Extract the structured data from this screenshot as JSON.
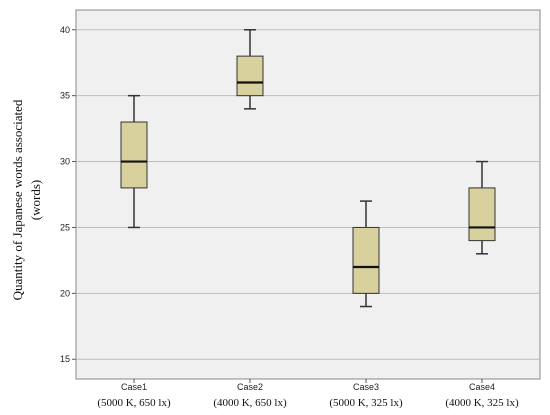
{
  "chart_data": {
    "type": "boxplot",
    "title": "",
    "ylabel_line1": "Quantity of Japanese words associated",
    "ylabel_line2": "(words)",
    "ylim": [
      13.5,
      41.5
    ],
    "yticks": [
      15,
      20,
      25,
      30,
      35,
      40
    ],
    "grid": true,
    "box_color": "#D8D19E",
    "box_edge_color": "#333333",
    "plot_background": "#F0F0F0",
    "categories": [
      "Case1",
      "Case2",
      "Case3",
      "Case4"
    ],
    "conditions": [
      "(5000 K,  650 lx)",
      "(4000 K,  650 lx)",
      "(5000 K,  325 lx)",
      "(4000 K,  325 lx)"
    ],
    "boxes": [
      {
        "category": "Case1",
        "min": 25,
        "q1": 28,
        "median": 30,
        "q3": 33,
        "max": 35
      },
      {
        "category": "Case2",
        "min": 34,
        "q1": 35,
        "median": 36,
        "q3": 38,
        "max": 40
      },
      {
        "category": "Case3",
        "min": 19,
        "q1": 20,
        "median": 22,
        "q3": 25,
        "max": 27
      },
      {
        "category": "Case4",
        "min": 23,
        "q1": 24,
        "median": 25,
        "q3": 28,
        "max": 30
      }
    ]
  }
}
